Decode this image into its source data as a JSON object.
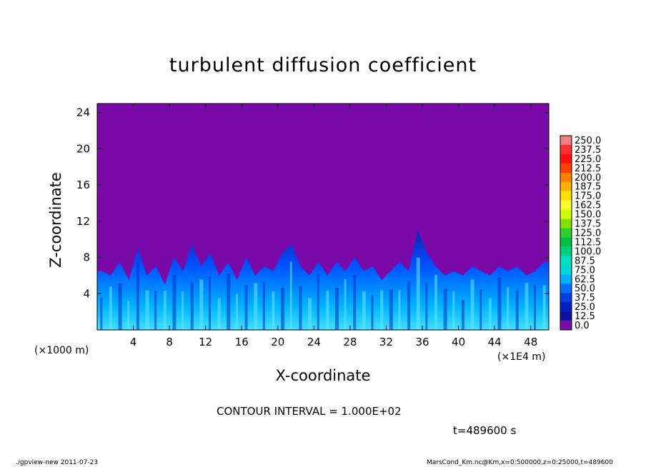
{
  "chart_data": {
    "type": "heatmap",
    "title": "turbulent diffusion coefficient",
    "xlabel": "X-coordinate",
    "ylabel": "Z-coordinate",
    "x_unit": "(×1E4 m)",
    "y_unit": "(×1000 m)",
    "xlim": [
      0,
      50
    ],
    "ylim": [
      0,
      25
    ],
    "x_ticks": [
      4,
      8,
      12,
      16,
      20,
      24,
      28,
      32,
      36,
      40,
      44,
      48
    ],
    "y_ticks": [
      4,
      8,
      12,
      16,
      20,
      24
    ],
    "colorbar_levels": [
      "250.0",
      "237.5",
      "225.0",
      "212.5",
      "200.0",
      "187.5",
      "175.0",
      "162.5",
      "150.0",
      "137.5",
      "125.0",
      "112.5",
      "100.0",
      "87.5",
      "75.0",
      "62.5",
      "50.0",
      "37.5",
      "25.0",
      "12.5",
      "0.0"
    ],
    "colorbar_colors": [
      "#f08080",
      "#ff3030",
      "#ff1010",
      "#ff4000",
      "#ff8000",
      "#ffb000",
      "#ffe000",
      "#ffff30",
      "#d0ff00",
      "#80e000",
      "#30d030",
      "#00c040",
      "#00d080",
      "#00e0c0",
      "#00d8d8",
      "#00b0ff",
      "#0070ff",
      "#0040e0",
      "#0020c0",
      "#1010a0",
      "#7a0aa8"
    ],
    "background_value": "0.0",
    "turbulent_layer_top_km": [
      6.5,
      6.0,
      7.5,
      5.5,
      9.0,
      6.0,
      7.0,
      5.0,
      8.0,
      6.5,
      9.5,
      7.0,
      8.5,
      6.0,
      7.5,
      5.5,
      8.0,
      6.0,
      7.0,
      6.5,
      8.5,
      9.5,
      7.0,
      6.0,
      7.5,
      6.0,
      7.5,
      6.5,
      8.0,
      6.5,
      7.0,
      5.5,
      6.5,
      7.5,
      6.5,
      11.0,
      8.5,
      7.0,
      6.0,
      6.5,
      6.0,
      7.0,
      6.5,
      6.0,
      7.0,
      6.5,
      7.0,
      6.0,
      6.5,
      7.5
    ]
  },
  "annotations": {
    "contour_interval": "CONTOUR INTERVAL = 1.000E+02",
    "time": "t=489600 s",
    "footer_left": "./gpview-new  2011-07-23",
    "footer_right": "MarsCond_Km.nc@Km,x=0:500000,z=0:25000,t=489600"
  }
}
